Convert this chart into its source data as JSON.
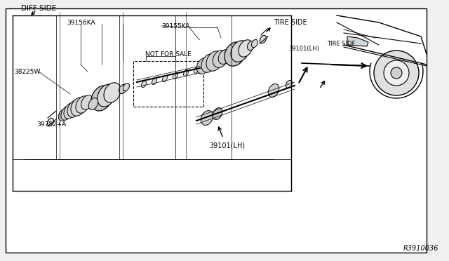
{
  "bg_color": "#ffffff",
  "border_color": "#000000",
  "line_color": "#000000",
  "light_gray": "#cccccc",
  "gray": "#888888",
  "dark_gray": "#555555",
  "fig_width": 6.4,
  "fig_height": 3.72,
  "dpi": 100,
  "diagram_ref": "R3910036",
  "labels": {
    "diff_side_top": "DIFF SIDE",
    "part1": "39752+A",
    "part2": "38225W",
    "part3": "39156KA",
    "part4": "NOT FOR SALE",
    "part5": "39155KA",
    "part6_top": "39101(LH)",
    "part6_top2": "39101(LH)",
    "tire_side_top": "TIRE SIDE",
    "tire_side_bot": "TIRE SIDE"
  }
}
